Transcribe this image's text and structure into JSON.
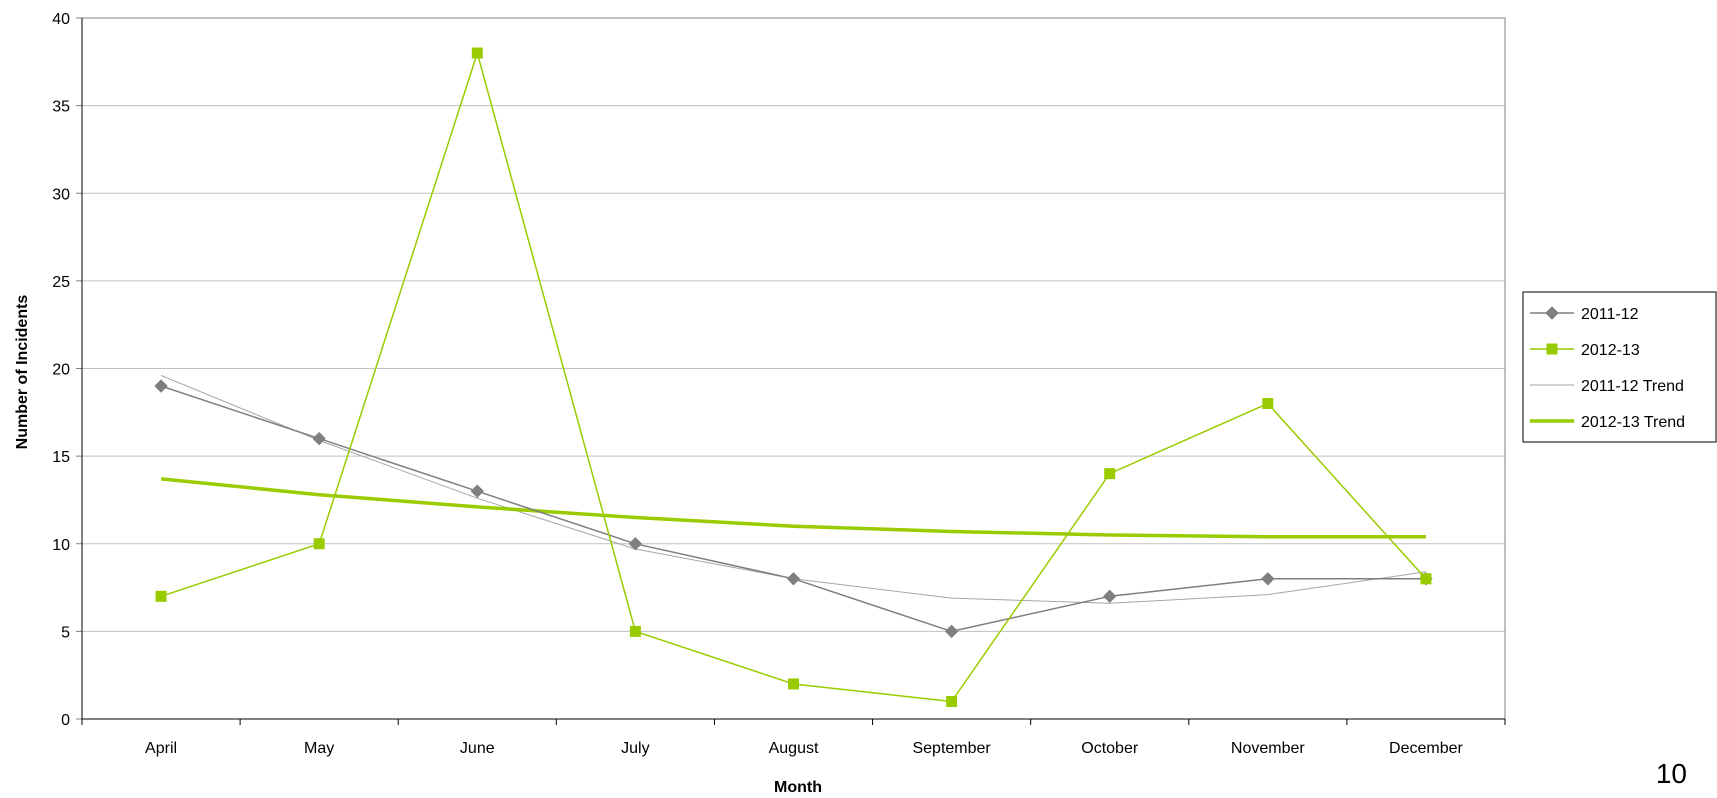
{
  "page_number": "10",
  "colors": {
    "series_2011": "#7f7f7f",
    "series_2012": "#99cc00",
    "trend_2011": "#a6a6a6",
    "trend_2012": "#99cc00",
    "grid": "#c0c0c0",
    "axis": "#808080"
  },
  "chart_data": {
    "type": "line",
    "title": "",
    "xlabel": "Month",
    "ylabel": "Number of Incidents",
    "ylim": [
      0,
      40
    ],
    "yticks": [
      0,
      5,
      10,
      15,
      20,
      25,
      30,
      35,
      40
    ],
    "grid": "horizontal",
    "legend_position": "right",
    "categories": [
      "April",
      "May",
      "June",
      "July",
      "August",
      "September",
      "October",
      "November",
      "December"
    ],
    "series": [
      {
        "name": "2011-12",
        "marker": "diamond",
        "values": [
          19,
          16,
          13,
          10,
          8,
          5,
          7,
          8,
          8
        ]
      },
      {
        "name": "2012-13",
        "marker": "square",
        "values": [
          7,
          10,
          38,
          5,
          2,
          1,
          14,
          18,
          8
        ]
      },
      {
        "name": "2011-12 Trend",
        "marker": "none",
        "values": [
          19.6,
          15.9,
          12.6,
          9.7,
          8.0,
          6.9,
          6.6,
          7.1,
          8.4
        ]
      },
      {
        "name": "2012-13 Trend",
        "marker": "none",
        "values": [
          13.7,
          12.8,
          12.1,
          11.5,
          11.0,
          10.7,
          10.5,
          10.4,
          10.4
        ]
      }
    ]
  }
}
